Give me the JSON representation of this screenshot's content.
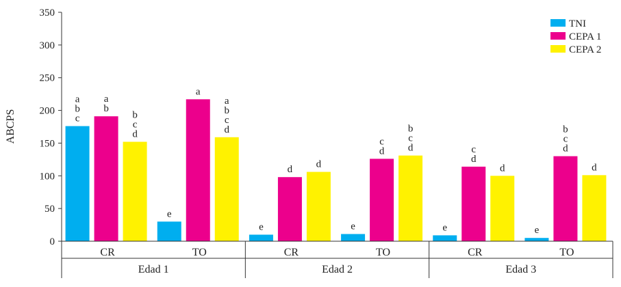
{
  "chart_data": {
    "type": "bar",
    "title": "",
    "xlabel": "",
    "ylabel": "ABCPS",
    "ylim": [
      0,
      350
    ],
    "yticks": [
      "0",
      "50",
      "100",
      "150",
      "200",
      "250",
      "300",
      "350"
    ],
    "grid": false,
    "legend_position": "top-right",
    "categories": [
      "CR",
      "TO",
      "CR",
      "TO",
      "CR",
      "TO"
    ],
    "groups": [
      "Edad 1",
      "Edad 2",
      "Edad 3"
    ],
    "series": [
      {
        "name": "TNI",
        "color": "#00aeef",
        "values": [
          176,
          30,
          10,
          11,
          9,
          5
        ],
        "letters": [
          "a\nb\nc",
          "e",
          "e",
          "e",
          "e",
          "e"
        ]
      },
      {
        "name": "CEPA 1",
        "color": "#ec008c",
        "values": [
          191,
          217,
          98,
          126,
          114,
          130
        ],
        "letters": [
          "a\nb",
          "a",
          "d",
          "c\nd",
          "c\nd",
          "b\nc\nd"
        ]
      },
      {
        "name": "CEPA 2",
        "color": "#fff200",
        "values": [
          152,
          159,
          106,
          131,
          100,
          101
        ],
        "letters": [
          "b\nc\nd",
          "a\nb\nc\nd",
          "d",
          "b\nc\nd",
          "d",
          "d"
        ]
      }
    ]
  }
}
